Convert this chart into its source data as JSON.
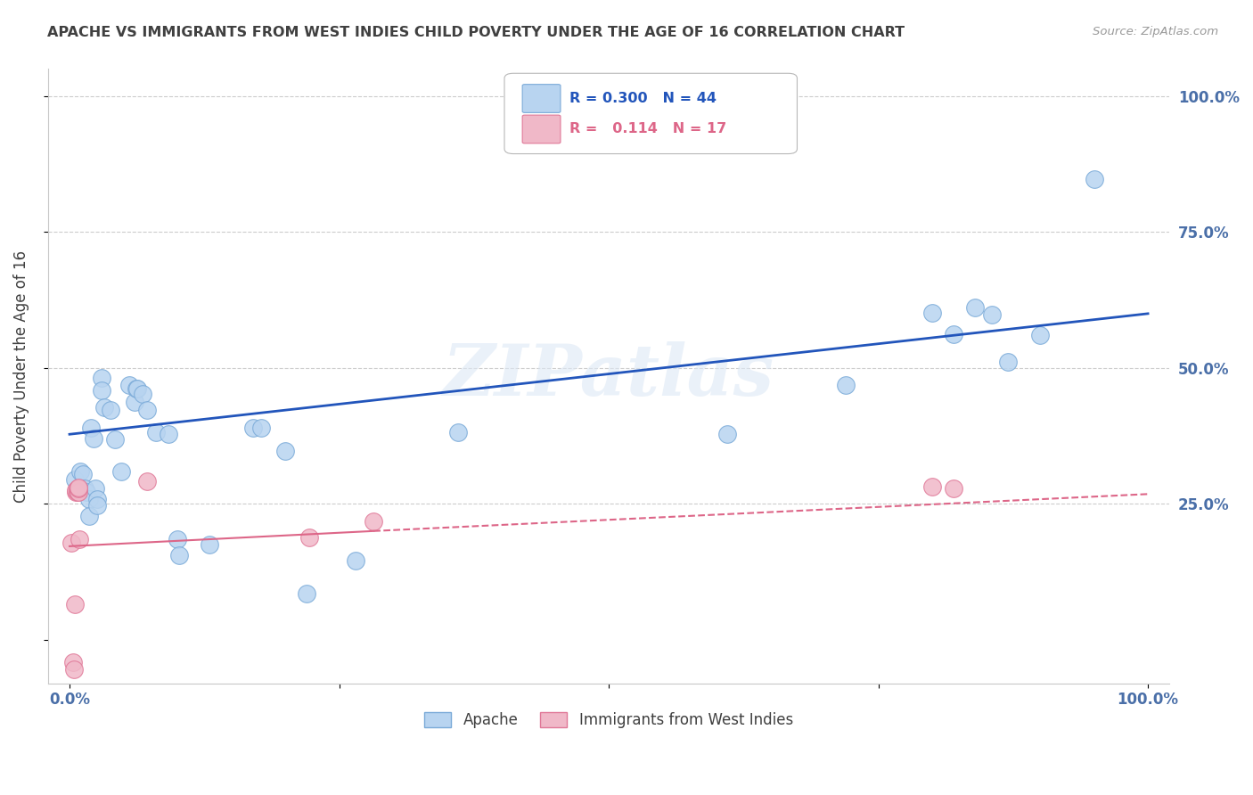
{
  "title": "APACHE VS IMMIGRANTS FROM WEST INDIES CHILD POVERTY UNDER THE AGE OF 16 CORRELATION CHART",
  "source": "Source: ZipAtlas.com",
  "ylabel": "Child Poverty Under the Age of 16",
  "xlim": [
    -0.02,
    1.02
  ],
  "ylim": [
    -0.08,
    1.05
  ],
  "legend_labels": [
    "Apache",
    "Immigrants from West Indies"
  ],
  "apache_color": "#b8d4f0",
  "apache_edge_color": "#7aaad8",
  "pink_color": "#f0b8c8",
  "pink_edge_color": "#e07898",
  "blue_line_color": "#2255bb",
  "pink_line_color": "#dd6688",
  "watermark": "ZIPatlas",
  "R_apache": 0.3,
  "N_apache": 44,
  "R_west_indies": 0.114,
  "N_west_indies": 17,
  "apache_x": [
    0.005,
    0.01,
    0.012,
    0.014,
    0.016,
    0.018,
    0.018,
    0.02,
    0.022,
    0.024,
    0.026,
    0.026,
    0.03,
    0.03,
    0.032,
    0.038,
    0.042,
    0.048,
    0.055,
    0.06,
    0.062,
    0.063,
    0.068,
    0.072,
    0.08,
    0.092,
    0.1,
    0.102,
    0.13,
    0.17,
    0.178,
    0.2,
    0.22,
    0.265,
    0.36,
    0.61,
    0.72,
    0.8,
    0.82,
    0.84,
    0.855,
    0.87,
    0.9,
    0.95
  ],
  "apache_y": [
    0.295,
    0.31,
    0.305,
    0.278,
    0.272,
    0.258,
    0.228,
    0.39,
    0.37,
    0.278,
    0.258,
    0.248,
    0.482,
    0.458,
    0.428,
    0.422,
    0.368,
    0.31,
    0.468,
    0.438,
    0.462,
    0.462,
    0.452,
    0.422,
    0.382,
    0.378,
    0.185,
    0.155,
    0.175,
    0.39,
    0.39,
    0.348,
    0.085,
    0.145,
    0.382,
    0.378,
    0.468,
    0.602,
    0.562,
    0.612,
    0.598,
    0.512,
    0.56,
    0.848
  ],
  "west_indies_x": [
    0.002,
    0.003,
    0.004,
    0.005,
    0.006,
    0.006,
    0.007,
    0.007,
    0.008,
    0.008,
    0.008,
    0.009,
    0.072,
    0.222,
    0.282,
    0.8,
    0.82
  ],
  "west_indies_y": [
    0.178,
    -0.042,
    -0.055,
    0.065,
    0.272,
    0.275,
    0.272,
    0.278,
    0.272,
    0.278,
    0.28,
    0.185,
    0.292,
    0.188,
    0.218,
    0.282,
    0.278
  ],
  "blue_line_x0": 0.0,
  "blue_line_y0": 0.378,
  "blue_line_x1": 1.0,
  "blue_line_y1": 0.6,
  "pink_line_solid_x0": 0.0,
  "pink_line_solid_y0": 0.172,
  "pink_line_solid_x1": 0.282,
  "pink_line_solid_y1": 0.2,
  "pink_line_dash_x0": 0.282,
  "pink_line_dash_y0": 0.2,
  "pink_line_dash_x1": 1.0,
  "pink_line_dash_y1": 0.268,
  "background_color": "#ffffff",
  "grid_color": "#cccccc",
  "title_color": "#404040",
  "tick_label_color": "#4a6fa8"
}
